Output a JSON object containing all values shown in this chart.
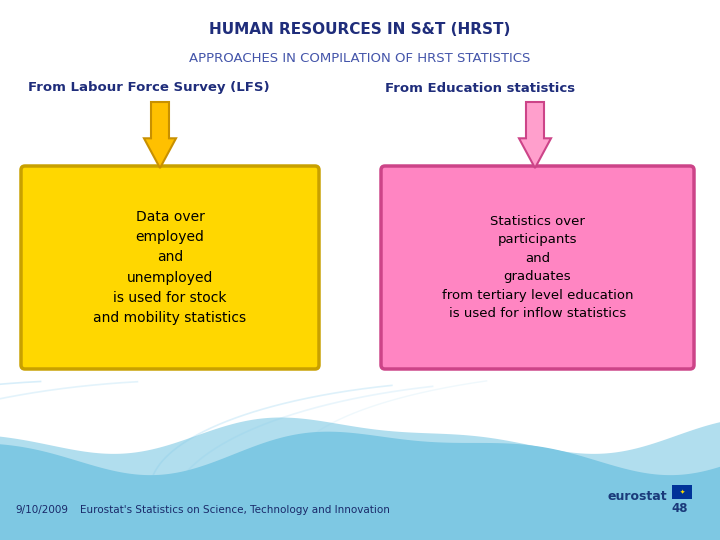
{
  "title1": "HUMAN RESOURCES IN S&T (HRST)",
  "title2": "APPROACHES IN COMPILATION OF HRST STATISTICS",
  "left_header": "From Labour Force Survey (LFS)",
  "right_header": "From Education statistics",
  "left_box_text": "Data over\nemployed\nand\nunemployed\nis used for stock\nand mobility statistics",
  "right_box_text": "Statistics over\nparticipants\nand\ngraduates\nfrom tertiary level education\nis used for inflow statistics",
  "left_box_color": "#FFD700",
  "right_box_color": "#FF85C2",
  "left_box_edge": "#C8A000",
  "right_box_edge": "#CC4488",
  "left_arrow_color": "#FFC000",
  "left_arrow_edge": "#C89000",
  "right_arrow_color": "#FF9FCC",
  "right_arrow_edge": "#CC4488",
  "bg_color": "#FFFFFF",
  "footer_bg": "#7EC8E3",
  "wave_light": "#B8DFF0",
  "title1_color": "#1F2D7B",
  "title2_color": "#4455AA",
  "header_color": "#1F2D7B",
  "box_text_color": "#000000",
  "footer_date": "9/10/2009",
  "footer_text": "Eurostat's Statistics on Science, Technology and Innovation",
  "footer_text_color": "#1A2A6A",
  "page_num": "48",
  "eurostat_color": "#1A3A7A"
}
